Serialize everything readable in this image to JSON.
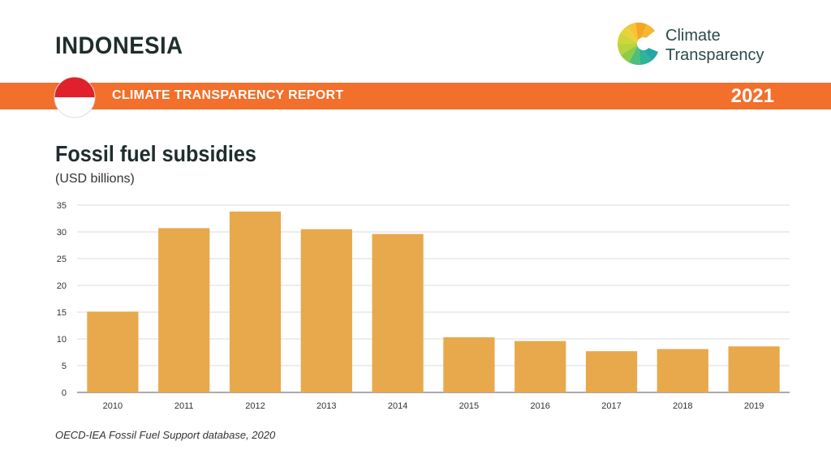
{
  "header": {
    "country": "INDONESIA",
    "report_label": "CLIMATE TRANSPARENCY REPORT",
    "year": "2021",
    "brand_line1": "Climate",
    "brand_line2": "Transparency"
  },
  "colors": {
    "banner": "#f26f2c",
    "bar": "#e8a84c",
    "flag_red": "#e0202a",
    "flag_white": "#ffffff"
  },
  "chart_data": {
    "type": "bar",
    "title": "Fossil fuel subsidies",
    "subtitle": "(USD billions)",
    "categories": [
      "2010",
      "2011",
      "2012",
      "2013",
      "2014",
      "2015",
      "2016",
      "2017",
      "2018",
      "2019"
    ],
    "values": [
      15.1,
      30.7,
      33.8,
      30.5,
      29.6,
      10.3,
      9.6,
      7.7,
      8.1,
      8.6
    ],
    "ylim": [
      0,
      35
    ],
    "yticks": [
      "0",
      "5",
      "10",
      "15",
      "20",
      "25",
      "30",
      "35"
    ],
    "grid": true,
    "legend": "none"
  },
  "footer": {
    "source": "OECD-IEA Fossil Fuel Support database, 2020"
  }
}
